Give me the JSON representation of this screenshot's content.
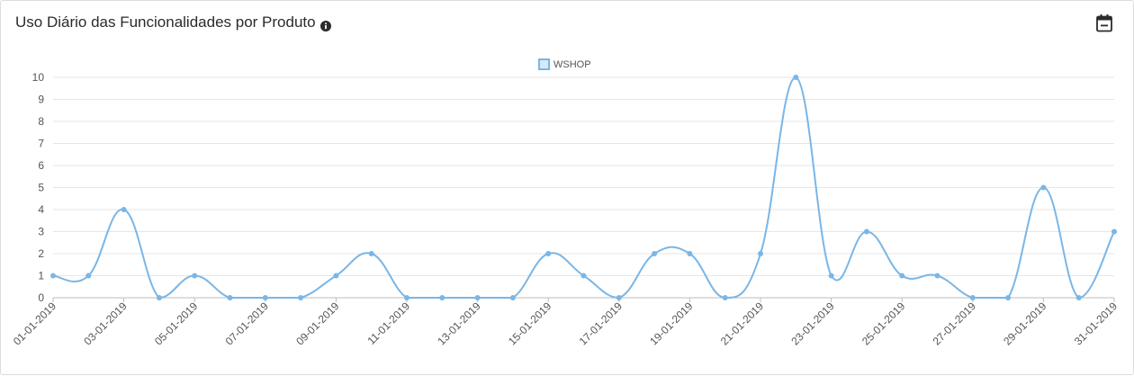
{
  "header": {
    "title": "Uso Diário das Funcionalidades por Produto",
    "info_icon": "info-circle-icon",
    "calendar_icon": "calendar-icon"
  },
  "colors": {
    "series": "#7ab6e6",
    "grid": "#e6e6e6",
    "axis": "#bdbdbd",
    "text": "#555555"
  },
  "chart_data": {
    "type": "line",
    "title": "",
    "xlabel": "",
    "ylabel": "",
    "ylim": [
      0,
      10
    ],
    "yticks": [
      0,
      1,
      2,
      3,
      4,
      5,
      6,
      7,
      8,
      9,
      10
    ],
    "grid": true,
    "legend": "top-center",
    "x": [
      "01-01-2019",
      "02-01-2019",
      "03-01-2019",
      "04-01-2019",
      "05-01-2019",
      "06-01-2019",
      "07-01-2019",
      "08-01-2019",
      "09-01-2019",
      "10-01-2019",
      "11-01-2019",
      "12-01-2019",
      "13-01-2019",
      "14-01-2019",
      "15-01-2019",
      "16-01-2019",
      "17-01-2019",
      "18-01-2019",
      "19-01-2019",
      "20-01-2019",
      "21-01-2019",
      "22-01-2019",
      "23-01-2019",
      "24-01-2019",
      "25-01-2019",
      "26-01-2019",
      "27-01-2019",
      "28-01-2019",
      "29-01-2019",
      "30-01-2019",
      "31-01-2019"
    ],
    "x_tick_labels": [
      "01-01-2019",
      "03-01-2019",
      "05-01-2019",
      "07-01-2019",
      "09-01-2019",
      "11-01-2019",
      "13-01-2019",
      "15-01-2019",
      "17-01-2019",
      "19-01-2019",
      "21-01-2019",
      "23-01-2019",
      "25-01-2019",
      "27-01-2019",
      "29-01-2019",
      "31-01-2019"
    ],
    "series": [
      {
        "name": "WSHOP",
        "values": [
          1,
          1,
          4,
          0,
          1,
          0,
          0,
          0,
          1,
          2,
          0,
          0,
          0,
          0,
          2,
          1,
          0,
          2,
          2,
          0,
          2,
          10,
          1,
          3,
          1,
          1,
          0,
          0,
          5,
          0,
          3
        ]
      }
    ]
  }
}
